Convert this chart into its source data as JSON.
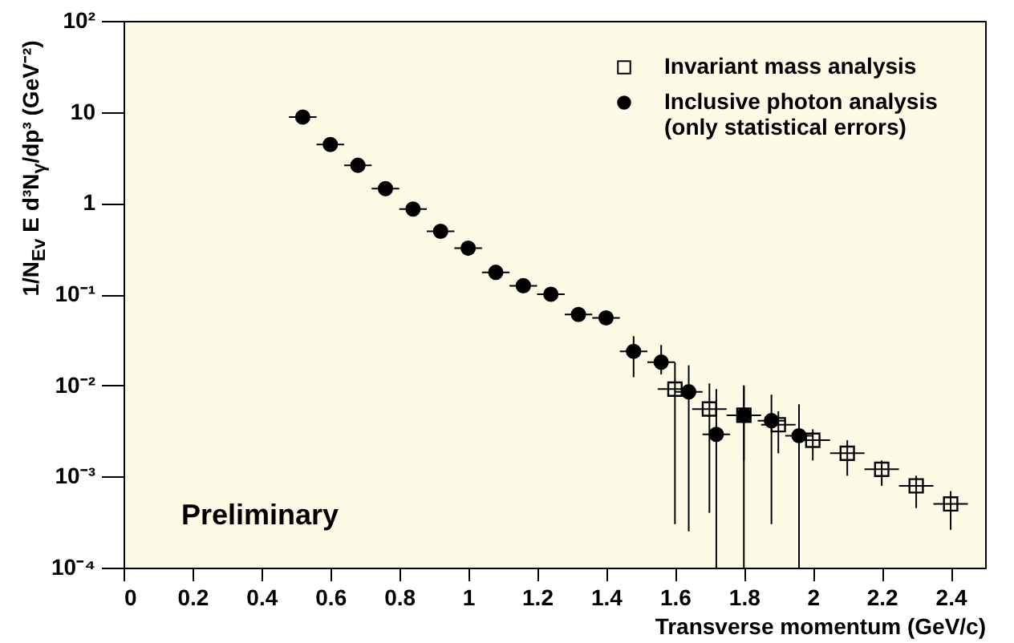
{
  "chart_data": {
    "type": "scatter",
    "xlabel": "Transverse momentum (GeV/c)",
    "ylabel": "1/N$_{Ev}$ E d³N$_{γ}$/dp³ (GeV⁻²)",
    "annotations": [
      "Preliminary"
    ],
    "log": "y",
    "grid": false,
    "legend": "top right",
    "xlim": [
      0,
      2.5
    ],
    "xticks": [
      0,
      0.2,
      0.4,
      0.6,
      0.8,
      1,
      1.2,
      1.4,
      1.6,
      1.8,
      2,
      2.2,
      2.4
    ],
    "ylim": [
      0.0001,
      100
    ],
    "yticks": [
      {
        "value": 100,
        "label": "10²"
      },
      10,
      1,
      {
        "value": 0.1,
        "label": "10⁻¹"
      },
      {
        "value": 0.01,
        "label": "10⁻²"
      },
      {
        "value": 0.001,
        "label": "10⁻³"
      },
      {
        "value": 0.0001,
        "label": "10⁻⁴"
      }
    ],
    "series": [
      {
        "name": "Invariant mass analysis",
        "color": "#000000",
        "marker": "square",
        "x": [
          1.6,
          1.7,
          1.8,
          1.9,
          2.0,
          2.1,
          2.2,
          2.3,
          2.4
        ],
        "values": [
          0.0091,
          0.0055,
          0.0047,
          0.0037,
          0.0025,
          0.0018,
          0.0012,
          0.00079,
          0.0005
        ],
        "errors": [
          [
            0.0003,
            0.0178
          ],
          [
            0.0004,
            0.0105
          ],
          [
            0.0015,
            0.0099
          ],
          [
            0.0018,
            0.0052
          ],
          [
            0.0015,
            0.0033
          ],
          [
            0.00102,
            0.0025
          ],
          [
            0.00079,
            0.0015
          ],
          [
            0.00045,
            0.00102
          ],
          [
            0.00026,
            0.00069
          ]
        ],
        "xerrors": [
          0.05,
          0.05,
          0.05,
          0.05,
          0.05,
          0.05,
          0.05,
          0.05,
          0.05
        ]
      },
      {
        "name": "Inclusive photon analysis (only statistical errors)",
        "color": "#000000",
        "marker": "circle",
        "x": [
          0.52,
          0.6,
          0.68,
          0.76,
          0.84,
          0.92,
          1.0,
          1.08,
          1.16,
          1.24,
          1.32,
          1.4,
          1.48,
          1.56,
          1.64,
          1.72,
          1.8,
          1.88,
          1.96
        ],
        "values": [
          8.8,
          4.4,
          2.6,
          1.44,
          0.86,
          0.49,
          0.32,
          0.174,
          0.124,
          0.1,
          0.06,
          0.055,
          0.0236,
          0.018,
          0.0085,
          0.0029,
          0.0047,
          0.0041,
          0.0028
        ],
        "errors": [
          null,
          null,
          null,
          null,
          null,
          null,
          null,
          null,
          null,
          null,
          null,
          null,
          [
            0.0123,
            0.0347
          ],
          [
            0.0132,
            0.0277
          ],
          [
            0.00025,
            0.0166
          ],
          [
            0.0001,
            0.0091
          ],
          [
            0.0001,
            0.01
          ],
          [
            0.0003,
            0.0079
          ],
          [
            0.0001,
            0.0062
          ]
        ],
        "xerrors": [
          0.04,
          0.04,
          0.04,
          0.04,
          0.04,
          0.04,
          0.04,
          0.04,
          0.04,
          0.04,
          0.04,
          0.04,
          0.04,
          0.04,
          0.04,
          0.04,
          0.04,
          0.04,
          0.04
        ]
      }
    ]
  }
}
